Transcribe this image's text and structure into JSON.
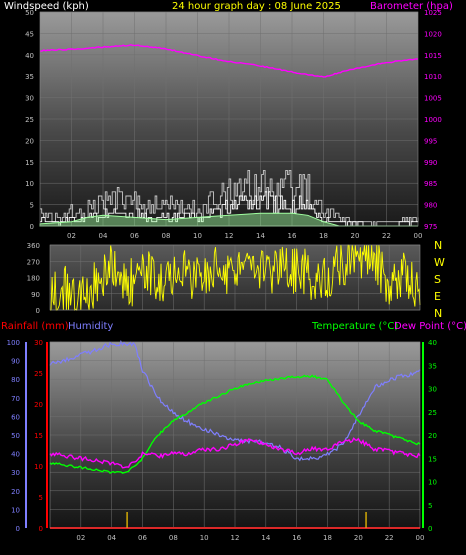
{
  "header": {
    "left_label": "Windspeed (kph)",
    "title": "24 hour graph day : 08 June 2025",
    "right_label": "Barometer (hpa)"
  },
  "colors": {
    "windspeed": "#ffffff",
    "gust": "#c8c8c8",
    "wind_avg": "#a0ffa0",
    "barometer": "#ff00ff",
    "direction": "#ffff00",
    "rain": "#ff0000",
    "humidity": "#7f7fff",
    "temperature": "#00ff00",
    "dewpoint": "#ff00ff",
    "axis_text": "#c0c0c0",
    "grid": "#707070"
  },
  "direction_panel": {
    "compass": [
      "N",
      "W",
      "S",
      "E",
      "N"
    ]
  },
  "lower_panel": {
    "rain_label": "Rainfall (mm)",
    "humidity_label": "Humidity",
    "temperature_label": "Temperature (°C)",
    "dewpoint_label": "Dew Point (°C)"
  },
  "chart_data": [
    {
      "type": "line",
      "name": "wind-barometer",
      "x_ticks": [
        "02",
        "04",
        "06",
        "08",
        "10",
        "12",
        "14",
        "16",
        "18",
        "20",
        "22",
        "00"
      ],
      "ylim": [
        0,
        50
      ],
      "y_ticks": [
        0,
        5,
        10,
        15,
        20,
        25,
        30,
        35,
        40,
        45,
        50
      ],
      "y2lim": [
        975,
        1025
      ],
      "y2_ticks": [
        975,
        980,
        985,
        990,
        995,
        1000,
        1005,
        1010,
        1015,
        1020,
        1025
      ],
      "grid": true,
      "series": [
        {
          "name": "barometer",
          "axis": "right",
          "x": [
            0,
            2,
            4,
            6,
            8,
            10,
            12,
            14,
            16,
            18,
            20,
            22,
            24
          ],
          "values": [
            1016,
            1016.3,
            1016.8,
            1017.3,
            1016.4,
            1014.8,
            1013.4,
            1012.4,
            1011,
            1009.8,
            1011.8,
            1013.2,
            1014
          ]
        },
        {
          "name": "gust",
          "axis": "left",
          "x": [
            0,
            1,
            2,
            3,
            4,
            5,
            6,
            7,
            8,
            9,
            10,
            11,
            12,
            13,
            14,
            15,
            16,
            17,
            18,
            19,
            20,
            21,
            22,
            23,
            24
          ],
          "values": [
            5,
            3,
            5,
            6,
            8,
            10,
            9,
            7,
            7,
            6,
            6,
            9,
            11,
            13,
            14,
            14,
            13,
            12,
            5,
            3,
            2,
            1,
            1,
            2,
            2
          ]
        },
        {
          "name": "windspeed",
          "axis": "left",
          "x": [
            0,
            1,
            2,
            3,
            4,
            5,
            6,
            7,
            8,
            9,
            10,
            11,
            12,
            13,
            14,
            15,
            16,
            17,
            18,
            19,
            20,
            21,
            22,
            23,
            24
          ],
          "values": [
            2,
            1,
            2,
            3,
            4,
            5,
            4,
            3,
            3,
            3,
            3,
            5,
            7,
            8,
            8,
            8,
            7,
            7,
            2,
            1,
            1,
            0,
            0,
            1,
            1
          ]
        },
        {
          "name": "wind_avg",
          "axis": "left",
          "x": [
            0,
            2,
            3,
            4,
            6,
            8,
            10,
            12,
            14,
            16,
            17,
            18,
            19,
            24
          ],
          "values": [
            0.5,
            1,
            2,
            2.5,
            2,
            1.5,
            2,
            2.5,
            3,
            3,
            2.5,
            1,
            0,
            0
          ]
        }
      ]
    },
    {
      "type": "line",
      "name": "wind-direction",
      "x_ticks": [
        "02",
        "04",
        "06",
        "08",
        "10",
        "12",
        "14",
        "16",
        "18",
        "20",
        "22",
        "00"
      ],
      "ylim": [
        0,
        360
      ],
      "y_ticks": [
        0,
        90,
        180,
        270,
        360
      ],
      "grid": true,
      "series": [
        {
          "name": "direction",
          "x": [
            0,
            1,
            2,
            3,
            4,
            5,
            6,
            7,
            8,
            9,
            10,
            11,
            12,
            13,
            14,
            15,
            16,
            17,
            18,
            19,
            20,
            21,
            22,
            23,
            24
          ],
          "values": [
            60,
            110,
            40,
            170,
            230,
            140,
            200,
            180,
            170,
            210,
            150,
            230,
            200,
            250,
            240,
            220,
            230,
            190,
            200,
            260,
            290,
            310,
            100,
            200,
            60
          ]
        }
      ]
    },
    {
      "type": "line",
      "name": "temp-humidity-rain",
      "x_ticks": [
        "02",
        "04",
        "06",
        "08",
        "10",
        "12",
        "14",
        "16",
        "18",
        "20",
        "22",
        "00"
      ],
      "rain_ylim": [
        0,
        30
      ],
      "rain_ticks": [
        0,
        5,
        10,
        15,
        20,
        25,
        30
      ],
      "humidity_ylim": [
        0,
        100
      ],
      "humidity_ticks": [
        0,
        10,
        20,
        30,
        40,
        50,
        60,
        70,
        80,
        90,
        100
      ],
      "temp_ylim": [
        0,
        40
      ],
      "temp_ticks": [
        0,
        5,
        10,
        15,
        20,
        25,
        30,
        35,
        40
      ],
      "grid": true,
      "series": [
        {
          "name": "humidity",
          "axis": "humidity",
          "x": [
            0,
            2,
            4,
            5.5,
            6,
            7,
            8,
            9,
            10,
            11,
            12,
            13,
            14,
            15,
            16,
            17,
            18,
            19,
            20,
            21,
            22,
            23,
            24
          ],
          "values": [
            88,
            93,
            99,
            99,
            85,
            70,
            62,
            57,
            53,
            50,
            47,
            47,
            46,
            43,
            37,
            37,
            40,
            45,
            60,
            75,
            80,
            82,
            84
          ]
        },
        {
          "name": "temperature",
          "axis": "temp",
          "x": [
            0,
            2,
            4,
            5,
            6,
            7,
            8,
            9,
            10,
            11,
            12,
            13,
            14,
            15,
            16,
            17,
            18,
            19,
            20,
            21,
            22,
            23,
            24
          ],
          "values": [
            14,
            13,
            12,
            12,
            15,
            20,
            23,
            25,
            27,
            28.5,
            30,
            31,
            31.8,
            32.2,
            32.5,
            32.6,
            32,
            27,
            23,
            21,
            20,
            19,
            18
          ]
        },
        {
          "name": "dewpoint",
          "axis": "temp",
          "x": [
            0,
            2,
            4,
            5,
            6,
            7,
            8,
            9,
            10,
            11,
            12,
            13,
            14,
            15,
            16,
            17,
            18,
            19,
            20,
            21,
            22,
            23,
            24
          ],
          "values": [
            16,
            15,
            14,
            13,
            16,
            15.5,
            16,
            16,
            17,
            17,
            18,
            19,
            18,
            17,
            16,
            17,
            17,
            18.5,
            19,
            17,
            16.5,
            16,
            15.5
          ]
        },
        {
          "name": "rain",
          "axis": "rain",
          "x": [
            0,
            24
          ],
          "values": [
            0,
            0
          ]
        }
      ],
      "markers_x": [
        5,
        20.5
      ]
    }
  ]
}
